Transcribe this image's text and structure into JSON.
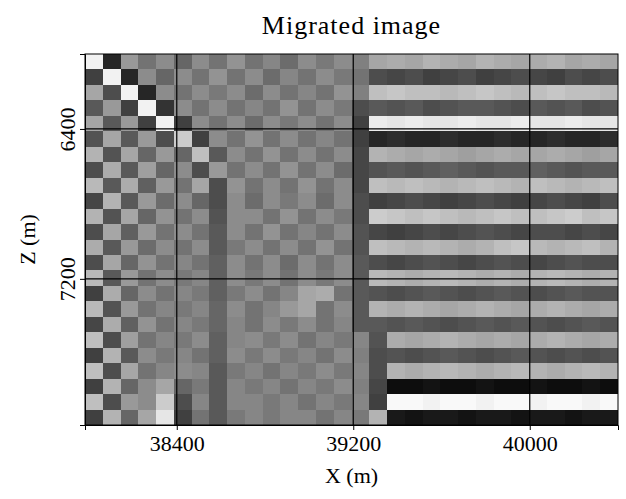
{
  "chart_data": {
    "type": "heatmap",
    "title": "Migrated image",
    "x_label": "X (m)",
    "y_label": "Z (m)",
    "xlim": [
      37984,
      40400
    ],
    "ylim": [
      6000,
      7980
    ],
    "xticks": [
      38400,
      39200,
      40000
    ],
    "yticks": [
      6400,
      7200
    ],
    "grid": true,
    "color": "gray",
    "zlim": [
      -1,
      1
    ],
    "x": [
      38024,
      38105,
      38185,
      38266,
      38346,
      38427,
      38507,
      38588,
      38668,
      38749,
      38830,
      38910,
      38991,
      39071,
      39152,
      39232,
      39313,
      39393,
      39474,
      39554,
      39635,
      39715,
      39796,
      39877,
      39957,
      40038,
      40118,
      40199,
      40279,
      40360
    ],
    "y": [
      6041,
      6124,
      6206,
      6289,
      6371,
      6454,
      6536,
      6619,
      6701,
      6784,
      6866,
      6949,
      7031,
      7114,
      7196,
      7279,
      7361,
      7444,
      7526,
      7609,
      7691,
      7774,
      7856,
      7939
    ],
    "values": [
      [
        0.9,
        -0.7,
        0.2,
        -0.1,
        0.1,
        -0.2,
        0.1,
        -0.1,
        0.15,
        -0.1,
        0.05,
        -0.15,
        0.1,
        -0.05,
        0.1,
        0.0,
        0.3,
        0.35,
        0.3,
        0.4,
        0.35,
        0.3,
        0.4,
        0.35,
        0.3,
        0.35,
        0.4,
        0.3,
        0.35,
        0.3
      ],
      [
        -0.5,
        0.9,
        -0.7,
        0.1,
        -0.2,
        0.1,
        -0.1,
        0.15,
        -0.1,
        0.1,
        -0.15,
        0.05,
        -0.1,
        0.1,
        -0.05,
        -0.1,
        -0.4,
        -0.45,
        -0.4,
        -0.5,
        -0.45,
        -0.4,
        -0.5,
        -0.45,
        -0.4,
        -0.45,
        -0.5,
        -0.4,
        -0.45,
        -0.4
      ],
      [
        0.3,
        -0.4,
        0.9,
        -0.7,
        0.1,
        -0.1,
        0.1,
        -0.05,
        0.1,
        -0.15,
        0.1,
        -0.1,
        0.05,
        -0.1,
        0.15,
        0.0,
        0.5,
        0.55,
        0.5,
        0.5,
        0.45,
        0.5,
        0.55,
        0.5,
        0.45,
        0.5,
        0.55,
        0.5,
        0.5,
        0.45
      ],
      [
        -0.3,
        0.2,
        -0.5,
        0.9,
        -0.6,
        0.1,
        -0.1,
        0.1,
        -0.1,
        0.05,
        -0.1,
        0.15,
        -0.1,
        0.1,
        -0.05,
        -0.4,
        -0.3,
        -0.35,
        -0.3,
        -0.4,
        -0.35,
        -0.3,
        -0.3,
        -0.35,
        -0.4,
        -0.3,
        -0.35,
        -0.3,
        -0.4,
        -0.35
      ],
      [
        0.3,
        -0.3,
        0.2,
        -0.5,
        0.9,
        -0.5,
        0.1,
        -0.1,
        0.1,
        -0.15,
        0.1,
        -0.05,
        0.1,
        -0.1,
        0.1,
        -0.5,
        0.85,
        0.8,
        0.85,
        0.8,
        0.8,
        0.85,
        0.8,
        0.8,
        0.85,
        0.8,
        0.8,
        0.85,
        0.8,
        0.8
      ],
      [
        -0.35,
        0.3,
        -0.3,
        0.2,
        -0.4,
        0.6,
        -0.5,
        0.1,
        -0.1,
        0.15,
        -0.1,
        0.1,
        -0.1,
        0.05,
        -0.1,
        -0.5,
        -0.7,
        -0.65,
        -0.7,
        -0.7,
        -0.65,
        -0.7,
        -0.7,
        -0.65,
        -0.7,
        -0.7,
        -0.65,
        -0.7,
        -0.7,
        -0.65
      ],
      [
        0.4,
        -0.35,
        0.3,
        -0.2,
        0.2,
        -0.2,
        0.5,
        -0.3,
        0.1,
        -0.1,
        0.15,
        -0.1,
        0.1,
        -0.1,
        0.1,
        -0.45,
        0.4,
        0.35,
        0.3,
        0.35,
        0.3,
        0.25,
        0.3,
        0.35,
        0.3,
        0.3,
        0.35,
        0.3,
        0.25,
        0.3
      ],
      [
        -0.4,
        0.35,
        -0.3,
        0.25,
        -0.2,
        0.1,
        -0.4,
        0.2,
        -0.1,
        0.1,
        -0.1,
        0.15,
        -0.1,
        0.1,
        -0.15,
        -0.45,
        -0.35,
        -0.3,
        -0.35,
        -0.3,
        -0.25,
        -0.3,
        -0.35,
        -0.3,
        -0.3,
        -0.25,
        -0.3,
        -0.35,
        -0.3,
        -0.3
      ],
      [
        0.45,
        -0.3,
        0.35,
        -0.25,
        0.2,
        -0.1,
        0.3,
        -0.4,
        0.15,
        -0.1,
        0.1,
        -0.1,
        0.15,
        -0.1,
        0.1,
        -0.45,
        0.5,
        0.45,
        0.5,
        0.45,
        0.4,
        0.45,
        0.5,
        0.45,
        0.4,
        0.5,
        0.45,
        0.4,
        0.45,
        0.5
      ],
      [
        -0.45,
        0.4,
        -0.3,
        0.2,
        -0.15,
        0.1,
        -0.2,
        -0.4,
        0.1,
        -0.15,
        0.1,
        -0.05,
        0.1,
        -0.15,
        0.1,
        -0.4,
        -0.5,
        -0.45,
        -0.4,
        -0.45,
        -0.5,
        -0.45,
        -0.4,
        -0.45,
        -0.5,
        -0.45,
        -0.4,
        -0.45,
        -0.5,
        -0.4
      ],
      [
        0.4,
        -0.35,
        0.3,
        -0.2,
        0.15,
        -0.1,
        0.1,
        -0.35,
        0.1,
        0.1,
        -0.1,
        0.15,
        -0.1,
        0.1,
        -0.05,
        -0.4,
        0.6,
        0.55,
        0.5,
        0.55,
        0.5,
        0.45,
        0.5,
        0.55,
        0.5,
        0.5,
        0.55,
        0.6,
        0.5,
        0.55
      ],
      [
        -0.4,
        0.3,
        -0.25,
        0.2,
        -0.1,
        0.1,
        -0.1,
        -0.3,
        0.1,
        -0.1,
        0.15,
        -0.1,
        0.05,
        -0.1,
        0.1,
        -0.35,
        -0.45,
        -0.5,
        -0.45,
        -0.4,
        -0.45,
        -0.4,
        -0.35,
        -0.4,
        -0.45,
        -0.4,
        -0.4,
        -0.45,
        -0.4,
        -0.45
      ],
      [
        0.35,
        -0.3,
        0.2,
        -0.15,
        0.1,
        -0.1,
        0.1,
        -0.3,
        -0.05,
        0.1,
        -0.1,
        0.1,
        -0.1,
        0.15,
        -0.1,
        -0.35,
        0.5,
        0.45,
        0.4,
        0.45,
        0.4,
        0.35,
        0.4,
        0.5,
        0.55,
        0.45,
        0.4,
        0.45,
        0.5,
        0.4
      ],
      [
        -0.4,
        0.3,
        -0.2,
        0.15,
        -0.1,
        0.05,
        -0.1,
        -0.25,
        0.1,
        -0.1,
        0.1,
        -0.15,
        0.1,
        -0.1,
        0.1,
        -0.3,
        -0.4,
        -0.45,
        -0.4,
        -0.35,
        -0.4,
        -0.45,
        -0.4,
        -0.35,
        -0.4,
        -0.45,
        -0.4,
        -0.35,
        -0.4,
        -0.4
      ],
      [
        0.45,
        -0.3,
        0.2,
        -0.1,
        0.1,
        -0.05,
        0.05,
        -0.25,
        0.1,
        -0.05,
        0.1,
        -0.1,
        0.1,
        -0.05,
        0.1,
        -0.3,
        0.45,
        0.4,
        0.35,
        0.4,
        0.45,
        0.4,
        0.35,
        0.4,
        0.35,
        0.4,
        0.45,
        0.4,
        0.35,
        0.4
      ],
      [
        -0.5,
        0.35,
        -0.2,
        0.1,
        -0.1,
        0.05,
        -0.05,
        -0.25,
        -0.05,
        0.1,
        -0.1,
        0.05,
        0.3,
        0.35,
        -0.1,
        -0.3,
        -0.35,
        -0.4,
        -0.35,
        -0.3,
        -0.35,
        -0.4,
        -0.35,
        -0.3,
        -0.35,
        -0.4,
        -0.35,
        -0.3,
        -0.35,
        -0.35
      ],
      [
        0.45,
        -0.35,
        0.2,
        -0.1,
        0.05,
        -0.05,
        0.05,
        -0.2,
        0.1,
        -0.1,
        0.05,
        0.2,
        0.3,
        -0.1,
        0.1,
        -0.3,
        0.4,
        0.35,
        0.4,
        0.35,
        0.3,
        0.35,
        0.4,
        0.35,
        0.3,
        0.35,
        0.4,
        0.35,
        0.3,
        0.35
      ],
      [
        -0.45,
        0.35,
        -0.25,
        0.15,
        -0.1,
        0.05,
        -0.05,
        -0.2,
        0.05,
        -0.1,
        0.1,
        -0.05,
        0.1,
        -0.1,
        0.05,
        -0.3,
        -0.3,
        -0.35,
        -0.3,
        -0.35,
        -0.4,
        -0.35,
        -0.3,
        -0.35,
        -0.3,
        -0.35,
        -0.4,
        -0.35,
        -0.3,
        -0.35
      ],
      [
        0.5,
        -0.4,
        0.25,
        -0.1,
        0.05,
        -0.05,
        0.1,
        -0.25,
        0.05,
        0.1,
        -0.05,
        0.1,
        -0.1,
        0.05,
        -0.05,
        0.05,
        -0.35,
        0.35,
        0.3,
        0.35,
        0.4,
        0.35,
        0.3,
        0.35,
        0.3,
        0.35,
        0.4,
        0.35,
        0.3,
        0.35
      ],
      [
        -0.5,
        0.4,
        -0.3,
        0.1,
        -0.05,
        0.05,
        -0.1,
        -0.25,
        0.1,
        -0.05,
        0.1,
        -0.05,
        0.05,
        -0.1,
        0.1,
        0.0,
        -0.4,
        -0.35,
        -0.4,
        -0.35,
        -0.3,
        -0.35,
        -0.4,
        -0.35,
        -0.3,
        -0.35,
        -0.4,
        -0.35,
        -0.4,
        -0.35
      ],
      [
        0.5,
        -0.4,
        0.3,
        -0.1,
        0.05,
        0.1,
        0.05,
        -0.3,
        -0.05,
        0.05,
        -0.1,
        0.05,
        -0.05,
        0.1,
        -0.05,
        0.05,
        -0.4,
        0.4,
        0.35,
        0.4,
        0.45,
        0.4,
        0.35,
        0.4,
        0.45,
        0.4,
        0.35,
        0.4,
        0.45,
        0.4
      ],
      [
        -0.5,
        0.4,
        -0.2,
        0.1,
        0.3,
        -0.2,
        -0.05,
        -0.3,
        0.05,
        -0.05,
        0.05,
        -0.1,
        0.05,
        -0.05,
        0.1,
        0.0,
        -0.45,
        -0.9,
        -0.9,
        -0.85,
        -0.9,
        -0.9,
        -0.85,
        -0.9,
        -0.9,
        -0.85,
        -0.9,
        -0.9,
        -0.85,
        -0.9
      ],
      [
        0.5,
        -0.4,
        0.2,
        0.1,
        0.6,
        -0.4,
        0.05,
        -0.3,
        0.05,
        0.05,
        -0.05,
        0.05,
        -0.1,
        0.05,
        -0.05,
        0.05,
        -0.5,
        0.95,
        0.95,
        0.9,
        0.95,
        0.95,
        0.9,
        0.95,
        0.95,
        0.9,
        0.95,
        0.95,
        0.9,
        0.95
      ],
      [
        -0.5,
        0.4,
        -0.2,
        0.3,
        0.8,
        -0.5,
        -0.1,
        -0.3,
        -0.05,
        0.05,
        -0.05,
        0.05,
        0.05,
        -0.1,
        0.05,
        -0.05,
        0.4,
        -0.8,
        -0.85,
        -0.8,
        -0.8,
        -0.85,
        -0.8,
        -0.8,
        -0.85,
        -0.8,
        -0.8,
        -0.85,
        -0.8,
        -0.8
      ]
    ]
  }
}
